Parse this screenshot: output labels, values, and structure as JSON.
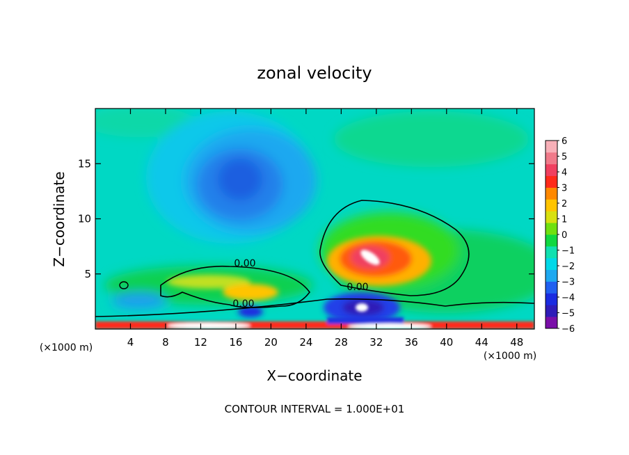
{
  "chart_data": {
    "type": "heatmap",
    "title": "zonal velocity",
    "xlabel": "X−coordinate",
    "ylabel": "Z−coordinate",
    "x_unit_label": "(×1000 m)",
    "x_unit_label_right": "(×1000 m)",
    "xlim": [
      0,
      50
    ],
    "ylim": [
      0,
      20
    ],
    "xticks": [
      4,
      8,
      12,
      16,
      20,
      24,
      28,
      32,
      36,
      40,
      44,
      48
    ],
    "xtick_labels": [
      "4",
      "8",
      "12",
      "16",
      "20",
      "24",
      "28",
      "32",
      "36",
      "40",
      "44",
      "48"
    ],
    "yticks": [
      5,
      10,
      15
    ],
    "ytick_labels": [
      "5",
      "10",
      "15"
    ],
    "colorbar": {
      "min": -6,
      "max": 6,
      "tick_labels": [
        "6",
        "5",
        "4",
        "3",
        "2",
        "1",
        "0",
        "−1",
        "−2",
        "−3",
        "−4",
        "−5",
        "−6"
      ],
      "colors": [
        "#7a0fa8",
        "#2f1cb8",
        "#1a2be0",
        "#2060f0",
        "#1ea8f0",
        "#00d8e8",
        "#10e0b0",
        "#10d840",
        "#70e010",
        "#d8e010",
        "#ffc400",
        "#ff8800",
        "#ff2a1a",
        "#f04060",
        "#f07a8a",
        "#f8b0b8"
      ]
    },
    "contour_labels": [
      "0.00",
      "0.00",
      "0.00"
    ],
    "features": [
      {
        "name": "negative core (upper left)",
        "x": 17,
        "z": 13.5,
        "value": -3.5
      },
      {
        "name": "positive core (mid right)",
        "x": 31.5,
        "z": 6.5,
        "value": 6
      },
      {
        "name": "negative near surface",
        "x": 30.5,
        "z": 2,
        "value": -5
      },
      {
        "name": "strong surface band",
        "x": 30,
        "z": 0.3,
        "value": 6
      }
    ]
  },
  "footer": {
    "contour_interval": "CONTOUR INTERVAL = 1.000E+01"
  }
}
